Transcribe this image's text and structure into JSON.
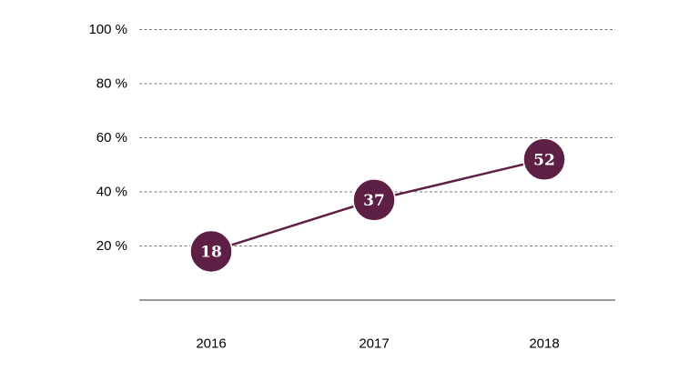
{
  "chart_data": {
    "type": "line",
    "categories": [
      "2016",
      "2017",
      "2018"
    ],
    "series": [
      {
        "values": [
          18,
          37,
          52
        ],
        "data_labels": [
          "18",
          "37",
          "52"
        ]
      }
    ],
    "y_ticks": [
      {
        "value": 20,
        "label": "20 %"
      },
      {
        "value": 40,
        "label": "40 %"
      },
      {
        "value": 60,
        "label": "60 %"
      },
      {
        "value": 80,
        "label": "80 %"
      },
      {
        "value": 100,
        "label": "100 %"
      }
    ],
    "ylim": [
      0,
      100
    ],
    "grid": true,
    "legend": "none",
    "colors": {
      "series": "#5e1f45",
      "marker_stroke": "#ffffff",
      "grid": "#7a7a7a",
      "axis": "#7a7a7a"
    }
  }
}
